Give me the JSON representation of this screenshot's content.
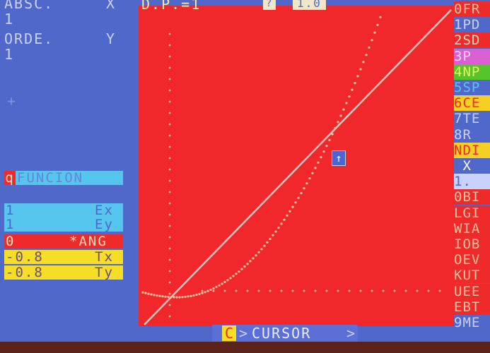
{
  "colors": {
    "screen_bg": "#4f68c9",
    "plot_bg": "#f0282b",
    "cyan_field": "#56c6ee",
    "yellow_field": "#f5de25",
    "red_field": "#ee2a2a",
    "text_light": "#c9d2ff",
    "curve_dots": "#ffc7a8"
  },
  "left": {
    "absc_label": "ABSC.",
    "absc_var": "X",
    "absc_value": "1",
    "orde_label": "ORDE.",
    "orde_var": "Y",
    "orde_value": "1",
    "marker_char": "+",
    "funcion_key": "q",
    "funcion_label": "FUNCION",
    "ex_value": "1",
    "ex_label": "Ex",
    "ey_value": "1",
    "ey_label": "Ey",
    "ang_value": "0",
    "ang_label": "*ANG",
    "tx_value": "-0.8",
    "tx_label": "Tx",
    "ty_value": "-0.8",
    "ty_label": "Ty"
  },
  "top": {
    "dp_text": "D.P.=1",
    "mid_text": "?",
    "right_text": "1.0"
  },
  "menu": [
    {
      "text": "0FR",
      "bg": "#ee2a2a",
      "fg": "#f7c0a0"
    },
    {
      "text": "1PD",
      "bg": "#4f68c9",
      "fg": "#c9d2ff"
    },
    {
      "text": "2SD",
      "bg": "#ee2a2a",
      "fg": "#ffd9c0"
    },
    {
      "text": "3P",
      "bg": "#d95fd2",
      "fg": "#f6d6f2"
    },
    {
      "text": "4NP",
      "bg": "#55c52e",
      "fg": "#f2ef5a"
    },
    {
      "text": "5SP",
      "bg": "#4f68c9",
      "fg": "#56c6ee"
    },
    {
      "text": "6CE",
      "bg": "#f5d022",
      "fg": "#ee2a2a"
    },
    {
      "text": "7TE",
      "bg": "#4f68c9",
      "fg": "#c9d2ff"
    },
    {
      "text": "8R",
      "bg": "#4f68c9",
      "fg": "#c9d2ff"
    },
    {
      "text": "NDI",
      "bg": "#f5d022",
      "fg": "#ee2a2a"
    },
    {
      "text": " X",
      "bg": "#4f68c9",
      "fg": "#ffffff"
    },
    {
      "text": "1.",
      "bg": "#c9d2ff",
      "fg": "#4f68c9"
    },
    {
      "text": "0BI",
      "bg": "#ee2a2a",
      "fg": "#f7c0a0"
    },
    {
      "text": "LGI",
      "bg": "#ee2a2a",
      "fg": "#f7c0a0"
    },
    {
      "text": "WIA",
      "bg": "#ee2a2a",
      "fg": "#f7c0a0"
    },
    {
      "text": "IOB",
      "bg": "#ee2a2a",
      "fg": "#f7c0a0"
    },
    {
      "text": "OEV",
      "bg": "#ee2a2a",
      "fg": "#f7c0a0"
    },
    {
      "text": "KUT",
      "bg": "#ee2a2a",
      "fg": "#f7c0a0"
    },
    {
      "text": "UEE",
      "bg": "#ee2a2a",
      "fg": "#f7c0a0"
    },
    {
      "text": "EBT",
      "bg": "#ee2a2a",
      "fg": "#f7c0a0"
    },
    {
      "text": "9ME",
      "bg": "#4f68c9",
      "fg": "#c9d2ff"
    }
  ],
  "cursor": {
    "key": "C",
    "arrow_left": ">",
    "label": "CURSOR",
    "arrow_right": ">"
  },
  "plot_marker": "↑"
}
